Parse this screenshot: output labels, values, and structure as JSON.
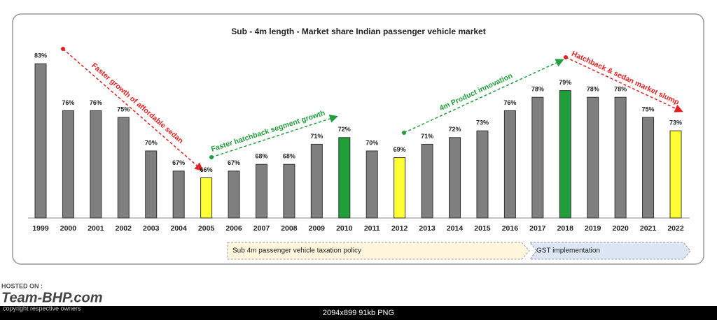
{
  "chart_data": {
    "type": "bar",
    "title": "Sub - 4m length - Market share Indian passenger vehicle market",
    "categories": [
      "1999",
      "2000",
      "2001",
      "2002",
      "2003",
      "2004",
      "2005",
      "2006",
      "2007",
      "2008",
      "2009",
      "2010",
      "2011",
      "2012",
      "2013",
      "2014",
      "2015",
      "2016",
      "2017",
      "2018",
      "2019",
      "2020",
      "2021",
      "2022"
    ],
    "values": [
      83,
      76,
      76,
      75,
      70,
      67,
      66,
      67,
      68,
      68,
      71,
      72,
      70,
      69,
      71,
      72,
      73,
      76,
      78,
      79,
      78,
      78,
      75,
      73
    ],
    "value_labels": [
      "83%",
      "76%",
      "76%",
      "75%",
      "70%",
      "67%",
      "66%",
      "67%",
      "68%",
      "68%",
      "71%",
      "72%",
      "70%",
      "69%",
      "71%",
      "72%",
      "73%",
      "76%",
      "78%",
      "79%",
      "78%",
      "78%",
      "75%",
      "73%"
    ],
    "colors": [
      "#7f7f7f",
      "#7f7f7f",
      "#7f7f7f",
      "#7f7f7f",
      "#7f7f7f",
      "#7f7f7f",
      "#ffff33",
      "#7f7f7f",
      "#7f7f7f",
      "#7f7f7f",
      "#7f7f7f",
      "#1f9e3a",
      "#7f7f7f",
      "#ffff33",
      "#7f7f7f",
      "#7f7f7f",
      "#7f7f7f",
      "#7f7f7f",
      "#7f7f7f",
      "#1f9e3a",
      "#7f7f7f",
      "#7f7f7f",
      "#7f7f7f",
      "#ffff33"
    ],
    "ylim": [
      60,
      85
    ],
    "annotations": [
      "Faster growth of affordable sedan",
      "Faster hatchback segment growth",
      "4m Product innovation",
      "Hatchback & sedan  market slump"
    ],
    "periods": [
      "Sub 4m passenger vehicle taxation policy",
      "GST implementation"
    ]
  },
  "footer": {
    "hosted": "HOSTED ON :",
    "site": "Team-BHP.com",
    "copyright": "copyright respective owners",
    "info": "2094x899 91kb PNG"
  }
}
